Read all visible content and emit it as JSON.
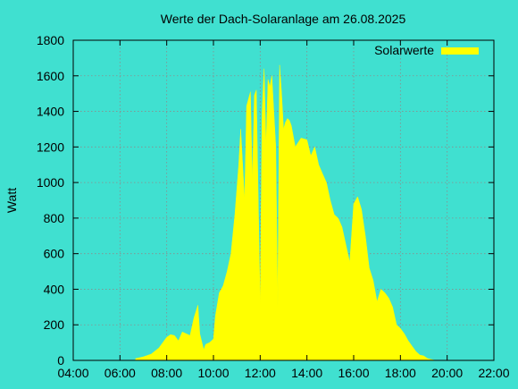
{
  "chart_data": {
    "type": "area",
    "title": "Werte der Dach-Solaranlage am 26.08.2025",
    "xlabel": "",
    "ylabel": "Watt",
    "legend": {
      "entries": [
        "Solarwerte"
      ],
      "placement": "top-right"
    },
    "grid": true,
    "colors": {
      "background": "#40e0d0",
      "series": "#ffff00",
      "grid": "#8c8c8c"
    },
    "xlim": [
      "04:00",
      "22:00"
    ],
    "ylim": [
      0,
      1800
    ],
    "x_ticks": [
      "04:00",
      "06:00",
      "08:00",
      "10:00",
      "12:00",
      "14:00",
      "16:00",
      "18:00",
      "20:00",
      "22:00"
    ],
    "y_ticks": [
      "0",
      "200",
      "400",
      "600",
      "800",
      "1000",
      "1200",
      "1400",
      "1600",
      "1800"
    ],
    "series": [
      {
        "name": "Solarwerte",
        "x": [
          "06:40",
          "07:00",
          "07:20",
          "07:40",
          "07:50",
          "08:00",
          "08:10",
          "08:20",
          "08:30",
          "08:40",
          "08:50",
          "09:00",
          "09:10",
          "09:20",
          "09:25",
          "09:35",
          "09:40",
          "09:50",
          "10:00",
          "10:05",
          "10:15",
          "10:25",
          "10:35",
          "10:45",
          "10:55",
          "11:05",
          "11:10",
          "11:20",
          "11:25",
          "11:35",
          "11:40",
          "11:45",
          "11:50",
          "12:00",
          "12:05",
          "12:10",
          "12:15",
          "12:20",
          "12:25",
          "12:30",
          "12:40",
          "12:45",
          "12:50",
          "12:55",
          "13:00",
          "13:05",
          "13:10",
          "13:15",
          "13:20",
          "13:30",
          "13:45",
          "14:00",
          "14:10",
          "14:20",
          "14:30",
          "14:40",
          "14:50",
          "15:00",
          "15:10",
          "15:20",
          "15:30",
          "15:40",
          "15:50",
          "16:00",
          "16:10",
          "16:20",
          "16:30",
          "16:40",
          "16:50",
          "17:00",
          "17:10",
          "17:20",
          "17:30",
          "17:40",
          "17:50",
          "18:00",
          "18:10",
          "18:20",
          "18:30",
          "18:40",
          "18:50",
          "19:00",
          "19:10",
          "19:20",
          "19:30",
          "19:40",
          "19:50"
        ],
        "values": [
          10,
          20,
          35,
          70,
          100,
          130,
          145,
          140,
          110,
          160,
          150,
          140,
          240,
          310,
          150,
          60,
          90,
          100,
          120,
          250,
          380,
          420,
          500,
          600,
          820,
          1100,
          1300,
          900,
          1430,
          1510,
          1000,
          1490,
          1520,
          300,
          1400,
          1640,
          1200,
          1580,
          1540,
          1600,
          1200,
          300,
          1660,
          1500,
          1300,
          1340,
          1360,
          1350,
          1320,
          1200,
          1250,
          1240,
          1150,
          1200,
          1100,
          1050,
          1000,
          900,
          820,
          800,
          750,
          650,
          550,
          880,
          920,
          850,
          700,
          520,
          450,
          330,
          400,
          380,
          350,
          300,
          200,
          180,
          150,
          110,
          80,
          50,
          30,
          25,
          10,
          5,
          0,
          0,
          0
        ]
      }
    ]
  }
}
